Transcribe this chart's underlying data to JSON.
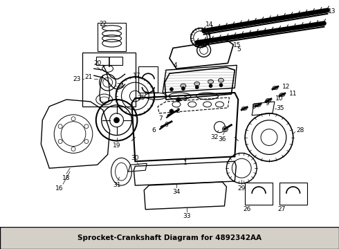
{
  "title": "Sprocket-Crankshaft",
  "part_number": "4892342AA",
  "background_color": "#ffffff",
  "fig_width": 4.9,
  "fig_height": 3.6,
  "dpi": 100,
  "caption": "Sprocket-Crankshaft Diagram for 4892342AA",
  "caption_bg": "#d4d0c8",
  "caption_fontsize": 7.5,
  "lw": 0.7,
  "gray": "#888888",
  "darkgray": "#555555",
  "black": "#000000"
}
